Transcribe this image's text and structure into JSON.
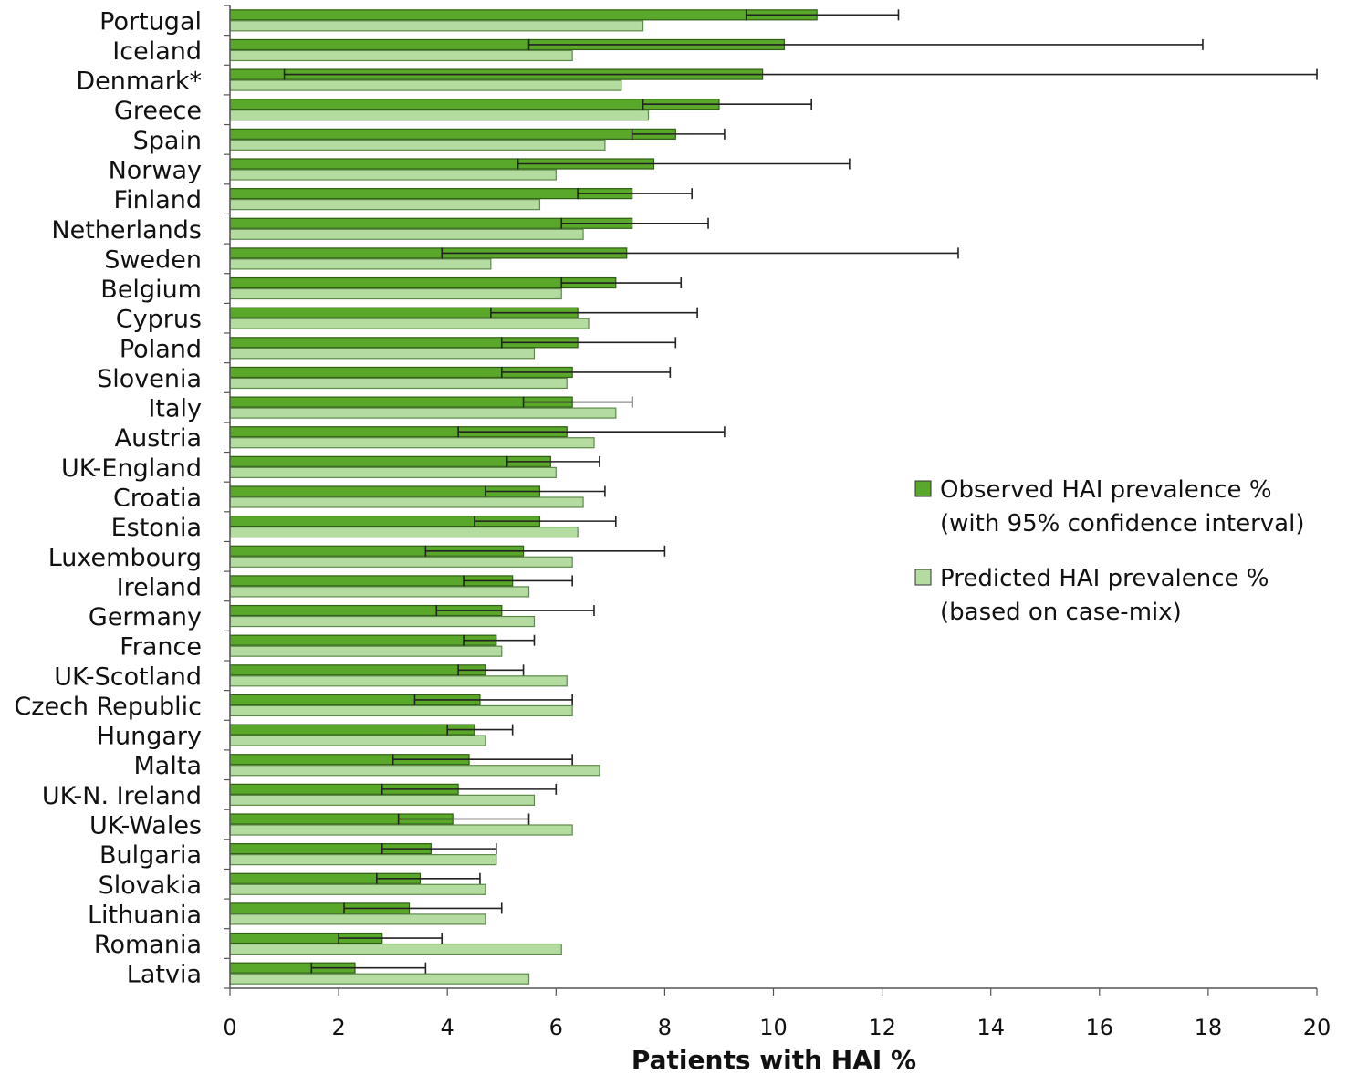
{
  "chart_data": {
    "type": "bar",
    "orientation": "horizontal",
    "xlabel": "Patients with HAI %",
    "xlim": [
      0,
      20
    ],
    "xticks": [
      "0",
      "2",
      "4",
      "6",
      "8",
      "10",
      "12",
      "14",
      "16",
      "18",
      "20"
    ],
    "grid": false,
    "legend_position": "right",
    "categories": [
      "Portugal",
      "Iceland",
      "Denmark*",
      "Greece",
      "Spain",
      "Norway",
      "Finland",
      "Netherlands",
      "Sweden",
      "Belgium",
      "Cyprus",
      "Poland",
      "Slovenia",
      "Italy",
      "Austria",
      "UK-England",
      "Croatia",
      "Estonia",
      "Luxembourg",
      "Ireland",
      "Germany",
      "France",
      "UK-Scotland",
      "Czech Republic",
      "Hungary",
      "Malta",
      "UK-N. Ireland",
      "UK-Wales",
      "Bulgaria",
      "Slovakia",
      "Lithuania",
      "Romania",
      "Latvia"
    ],
    "series": [
      {
        "name": "Observed HAI prevalence % (with 95% confidence interval)",
        "legend_lines": [
          "Observed HAI prevalence %",
          "(with 95% confidence interval)"
        ],
        "color": "#5aa829",
        "values": [
          10.8,
          10.2,
          9.8,
          9.0,
          8.2,
          7.8,
          7.4,
          7.4,
          7.3,
          7.1,
          6.4,
          6.4,
          6.3,
          6.3,
          6.2,
          5.9,
          5.7,
          5.7,
          5.4,
          5.2,
          5.0,
          4.9,
          4.7,
          4.6,
          4.5,
          4.4,
          4.2,
          4.1,
          3.7,
          3.5,
          3.3,
          2.8,
          2.3
        ],
        "ci_low": [
          9.5,
          5.5,
          1.0,
          7.6,
          7.4,
          5.3,
          6.4,
          6.1,
          3.9,
          6.1,
          4.8,
          5.0,
          5.0,
          5.4,
          4.2,
          5.1,
          4.7,
          4.5,
          3.6,
          4.3,
          3.8,
          4.3,
          4.2,
          3.4,
          4.0,
          3.0,
          2.8,
          3.1,
          2.8,
          2.7,
          2.1,
          2.0,
          1.5
        ],
        "ci_high": [
          12.3,
          17.9,
          20.0,
          10.7,
          9.1,
          11.4,
          8.5,
          8.8,
          13.4,
          8.3,
          8.6,
          8.2,
          8.1,
          7.4,
          9.1,
          6.8,
          6.9,
          7.1,
          8.0,
          6.3,
          6.7,
          5.6,
          5.4,
          6.3,
          5.2,
          6.3,
          6.0,
          5.5,
          4.9,
          4.6,
          5.0,
          3.9,
          3.6
        ]
      },
      {
        "name": "Predicted HAI prevalence % (based on case-mix)",
        "legend_lines": [
          "Predicted HAI prevalence %",
          "(based on case-mix)"
        ],
        "color": "#b5dca0",
        "values": [
          7.6,
          6.3,
          7.2,
          7.7,
          6.9,
          6.0,
          5.7,
          6.5,
          4.8,
          6.1,
          6.6,
          5.6,
          6.2,
          7.1,
          6.7,
          6.0,
          6.5,
          6.4,
          6.3,
          5.5,
          5.6,
          5.0,
          6.2,
          6.3,
          4.7,
          6.8,
          5.6,
          6.3,
          4.9,
          4.7,
          4.7,
          6.1,
          5.5
        ]
      }
    ]
  }
}
